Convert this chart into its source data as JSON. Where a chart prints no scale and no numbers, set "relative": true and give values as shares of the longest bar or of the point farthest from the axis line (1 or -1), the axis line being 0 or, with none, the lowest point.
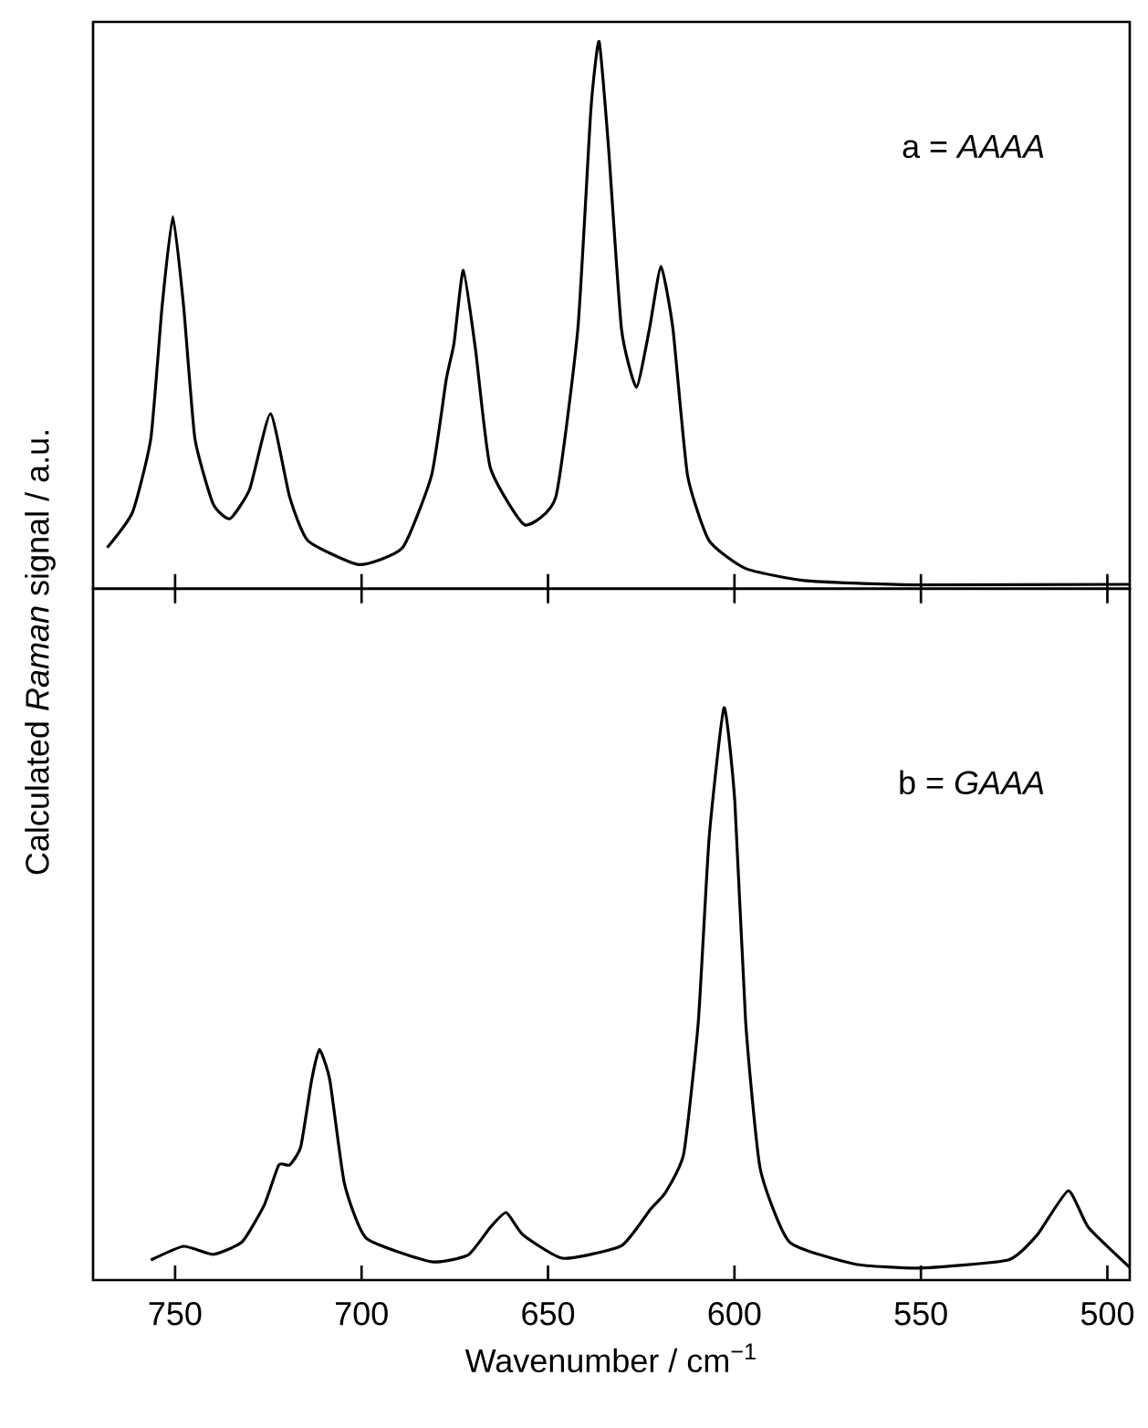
{
  "chart_data": [
    {
      "type": "line",
      "relative": true,
      "ylabel": "Calculated *Raman* signal / a.u.",
      "annotations": [
        "a = *AAAA*"
      ],
      "xlim": [
        772,
        494
      ],
      "xticks": [
        750,
        700,
        650,
        600,
        550,
        500
      ],
      "tick_labels": false,
      "marker": "none",
      "series": [
        {
          "color": "#000000",
          "x": [
            768.2,
            761.4,
            756.5,
            753.5,
            750.6,
            747.7,
            744.7,
            739.8,
            735.3,
            730,
            724.4,
            719.3,
            714.4,
            700.7,
            689,
            681.2,
            677.3,
            675.2,
            672.7,
            669.4,
            665.5,
            656.3,
            647.9,
            642,
            638.5,
            636.3,
            633.8,
            630.3,
            626.3,
            622.8,
            619.7,
            616.5,
            612.6,
            606.8,
            597,
            581.3,
            552,
            494.2
          ],
          "values": [
            0.075,
            0.14,
            0.275,
            0.515,
            0.68,
            0.515,
            0.275,
            0.155,
            0.128,
            0.182,
            0.32,
            0.168,
            0.088,
            0.044,
            0.075,
            0.208,
            0.382,
            0.449,
            0.582,
            0.435,
            0.222,
            0.117,
            0.168,
            0.475,
            0.876,
            1.0,
            0.809,
            0.475,
            0.368,
            0.475,
            0.589,
            0.475,
            0.208,
            0.088,
            0.037,
            0.015,
            0.007,
            0.008
          ]
        }
      ]
    },
    {
      "type": "line",
      "relative": true,
      "xlabel": "Wavenumber / cm$^{−1}$",
      "annotations": [
        "b = *GAAA*"
      ],
      "xlim": [
        772,
        494
      ],
      "xticks": [
        750,
        700,
        650,
        600,
        550,
        500
      ],
      "marker": "none",
      "series": [
        {
          "color": "#000000",
          "x": [
            756.5,
            747.7,
            739.8,
            732,
            726.1,
            722.2,
            719.3,
            716.3,
            713.4,
            711.3,
            708.5,
            704.6,
            698.7,
            681.2,
            671.4,
            665.5,
            661.2,
            656.7,
            646,
            630.3,
            622.5,
            618.5,
            613.6,
            609.7,
            606.8,
            602.8,
            599.9,
            597,
            593.1,
            585.3,
            567.7,
            550.1,
            526.6,
            518.8,
            510.5,
            505.1,
            494
          ],
          "values": [
            0.035,
            0.059,
            0.045,
            0.067,
            0.131,
            0.201,
            0.201,
            0.233,
            0.349,
            0.403,
            0.349,
            0.169,
            0.073,
            0.032,
            0.044,
            0.092,
            0.118,
            0.079,
            0.038,
            0.06,
            0.124,
            0.153,
            0.221,
            0.451,
            0.772,
            1.0,
            0.836,
            0.451,
            0.195,
            0.067,
            0.028,
            0.021,
            0.035,
            0.079,
            0.156,
            0.092,
            0.022
          ]
        }
      ]
    }
  ]
}
